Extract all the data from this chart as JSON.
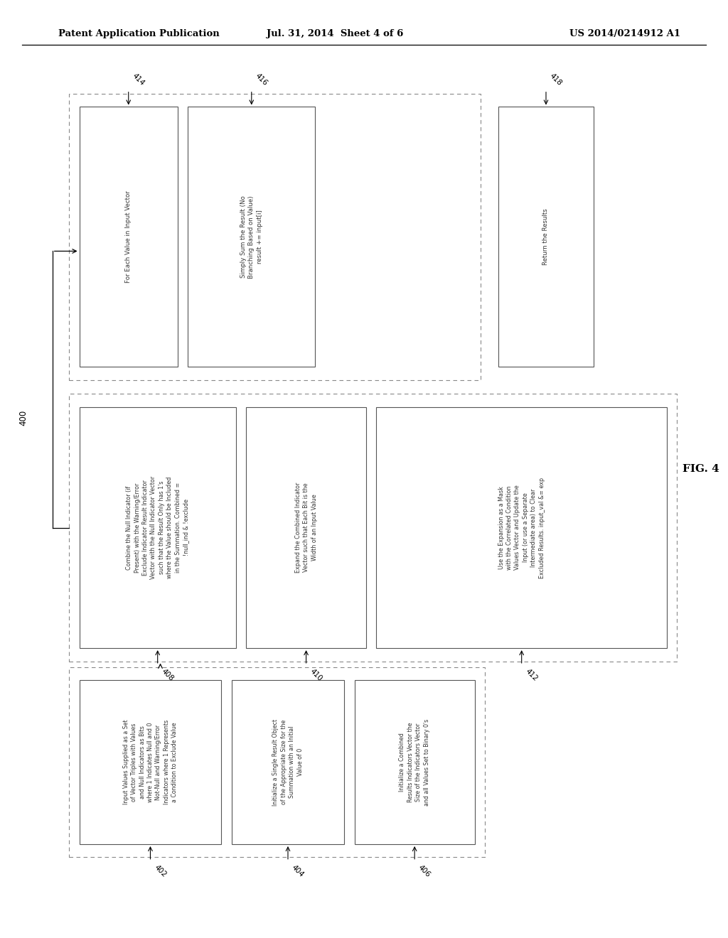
{
  "header_left": "Patent Application Publication",
  "header_mid": "Jul. 31, 2014  Sheet 4 of 6",
  "header_right": "US 2014/0214912 A1",
  "fig_label": "FIG. 4",
  "fig_number": "400",
  "bg_color": "#ffffff",
  "box_edge": "#555555",
  "text_color": "#333333",
  "dashed_edge": "#888888",
  "box402_text": "Input Values Supplied as a Set\nof Vector Triples with Values\nand Null Indicators as Bits\nwhere 1 Indicates Null and 0\nNot-Null and Warning/Error\nIndicators where 1 Represents\na Condition to Exclude Value",
  "box404_text": "Initialize a Single Result Object\nof the Appropriate Size for the\nSummation with an Initial\nValue of 0",
  "box406_text": "Initialize a Combined\nResults Indicators Vector the\nSize of the Indicators Vector\nand all Values Set to Binary 0's",
  "box408_text": "Combine the Null Indicator (if\nPresent) with the Warning/Error\nExclude Indicator Result Indicator\nVector with the Null Indicator Vector\nsuch that the Result Only has 1's\nwhere the Value should be Included\nin the Summation. Combined =\n!null_ind & !exclude",
  "box410_text": "Expand the Combined Indicator\nVector such that Each Bit is the\nWidth of an Input Value",
  "box412_text": "Use the Expansion as a Mask\nwith the Correlated Condition\nValues Vector and Update the\nInput (or use a Separate\nIntermediate area) to Clear\nExcluded Results. input_val &= exp",
  "box414_text": "For Each Value in Input Vector",
  "box416_text": "Simply Sum the Result (No\nBranching Based on Value)\nresult += input[i]",
  "box418_text": "Return the Results"
}
